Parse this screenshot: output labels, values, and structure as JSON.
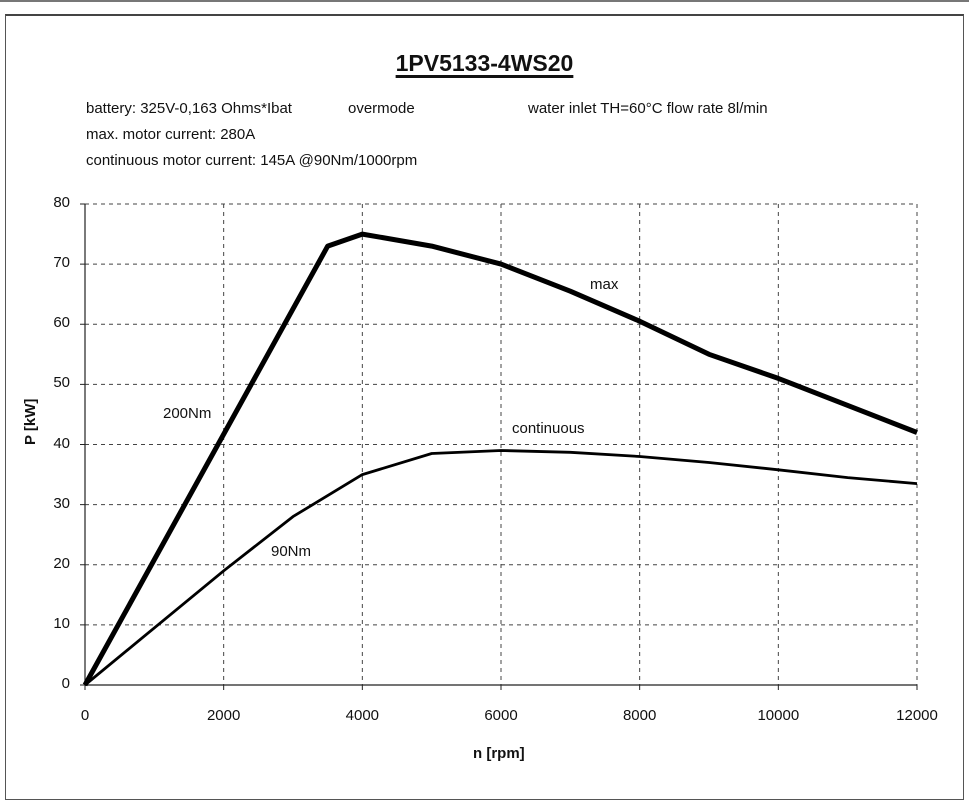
{
  "header": {
    "title": "1PV5133-4WS20",
    "line1_a": "battery: 325V-0,163 Ohms*Ibat",
    "line1_b": "overmode",
    "line1_c": "water inlet TH=60°C  flow rate 8l/min",
    "line2": "max. motor current: 280A",
    "line3": "continuous motor current: 145A @90Nm/1000rpm"
  },
  "axes": {
    "xlabel": "n [rpm]",
    "ylabel": "P [kW]",
    "xticks": [
      "0",
      "2000",
      "4000",
      "6000",
      "8000",
      "10000",
      "12000"
    ],
    "yticks": [
      "80",
      "70",
      "60",
      "50",
      "40",
      "30",
      "20",
      "10",
      "0"
    ]
  },
  "labels": {
    "max": "max",
    "continuous": "continuous",
    "torque_200": "200Nm",
    "torque_90": "90Nm"
  },
  "chart_data": {
    "type": "line",
    "title": "1PV5133-4WS20",
    "xlabel": "n [rpm]",
    "ylabel": "P [kW]",
    "xlim": [
      0,
      12000
    ],
    "ylim": [
      0,
      80
    ],
    "grid": true,
    "annotations": [
      "200Nm",
      "90Nm",
      "max",
      "continuous"
    ],
    "series": [
      {
        "name": "max",
        "x": [
          0,
          3500,
          4000,
          5000,
          6000,
          7000,
          8000,
          9000,
          10000,
          11000,
          12000
        ],
        "values": [
          0,
          73,
          75,
          73,
          70,
          65.5,
          60.5,
          55,
          51,
          46.5,
          42
        ]
      },
      {
        "name": "continuous",
        "x": [
          0,
          1000,
          2000,
          3000,
          4000,
          5000,
          6000,
          7000,
          8000,
          9000,
          10000,
          11000,
          12000
        ],
        "values": [
          0,
          9.5,
          19,
          28,
          35,
          38.5,
          39,
          38.7,
          38,
          37,
          35.8,
          34.5,
          33.5
        ]
      }
    ]
  }
}
